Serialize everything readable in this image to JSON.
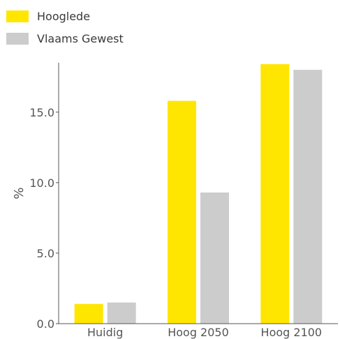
{
  "chart_data": {
    "type": "bar",
    "categories": [
      "Huidig",
      "Hoog 2050",
      "Hoog 2100"
    ],
    "series": [
      {
        "name": "Hooglede",
        "values": [
          1.4,
          15.8,
          18.4
        ],
        "color": "#FFE600"
      },
      {
        "name": "Vlaams Gewest",
        "values": [
          1.5,
          9.3,
          18.0
        ],
        "color": "#CCCCCC"
      }
    ],
    "ylabel": "%",
    "ylim": [
      0,
      18.5
    ],
    "yticks": [
      "0.0",
      "5.0",
      "10.0",
      "15.0"
    ],
    "grid": false,
    "legend_position": "top-left"
  }
}
